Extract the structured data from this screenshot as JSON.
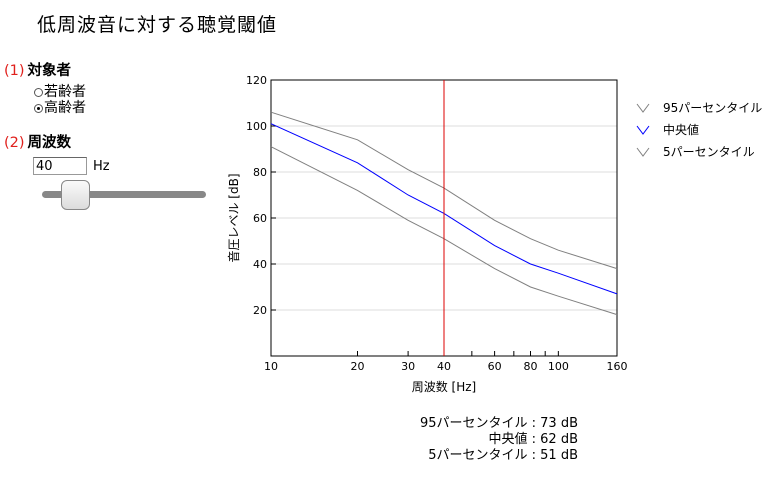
{
  "page": {
    "title": "低周波音に対する聴覚閾値"
  },
  "section1": {
    "number": "(1)",
    "label": "対象者",
    "options": [
      {
        "label": "若齢者",
        "checked": false
      },
      {
        "label": "高齢者",
        "checked": true
      }
    ]
  },
  "section2": {
    "number": "(2)",
    "label": "周波数",
    "value": "40",
    "unit": "Hz",
    "slider_fraction": 0.25
  },
  "chart_data": {
    "type": "line",
    "xlabel": "周波数 [Hz]",
    "ylabel": "音圧レベル [dB]",
    "xscale": "log",
    "xlim": [
      10,
      160
    ],
    "ylim": [
      0,
      120
    ],
    "xticks": [
      10,
      20,
      30,
      40,
      50,
      60,
      70,
      80,
      90,
      100,
      160
    ],
    "xtick_labels": [
      "10",
      "20",
      "30",
      "40",
      "",
      "60",
      "",
      "80",
      "",
      "100",
      "160"
    ],
    "yticks": [
      20,
      40,
      60,
      80,
      100,
      120
    ],
    "ytick_labels": [
      "20",
      "40",
      "60",
      "80",
      "100",
      "120"
    ],
    "grid": "horizontal",
    "legend_position": "right",
    "x": [
      10,
      20,
      30,
      40,
      60,
      80,
      100,
      160
    ],
    "series": [
      {
        "name": "95パーセンタイル",
        "color": "#808080",
        "values": [
          106,
          94,
          81,
          73,
          59,
          51,
          46,
          38
        ]
      },
      {
        "name": "中央値",
        "color": "#0000ff",
        "values": [
          101,
          84,
          70,
          62,
          48,
          40,
          36,
          27
        ]
      },
      {
        "name": "5パーセンタイル",
        "color": "#808080",
        "values": [
          91,
          72,
          59,
          51,
          38,
          30,
          26,
          18
        ]
      }
    ],
    "marker_line": {
      "x": 40,
      "color": "#dd0000"
    }
  },
  "results": [
    {
      "label": "95パーセンタイル",
      "value": ": 73 dB"
    },
    {
      "label": "中央値",
      "value": ": 62 dB"
    },
    {
      "label": "5パーセンタイル",
      "value": ": 51 dB"
    }
  ]
}
